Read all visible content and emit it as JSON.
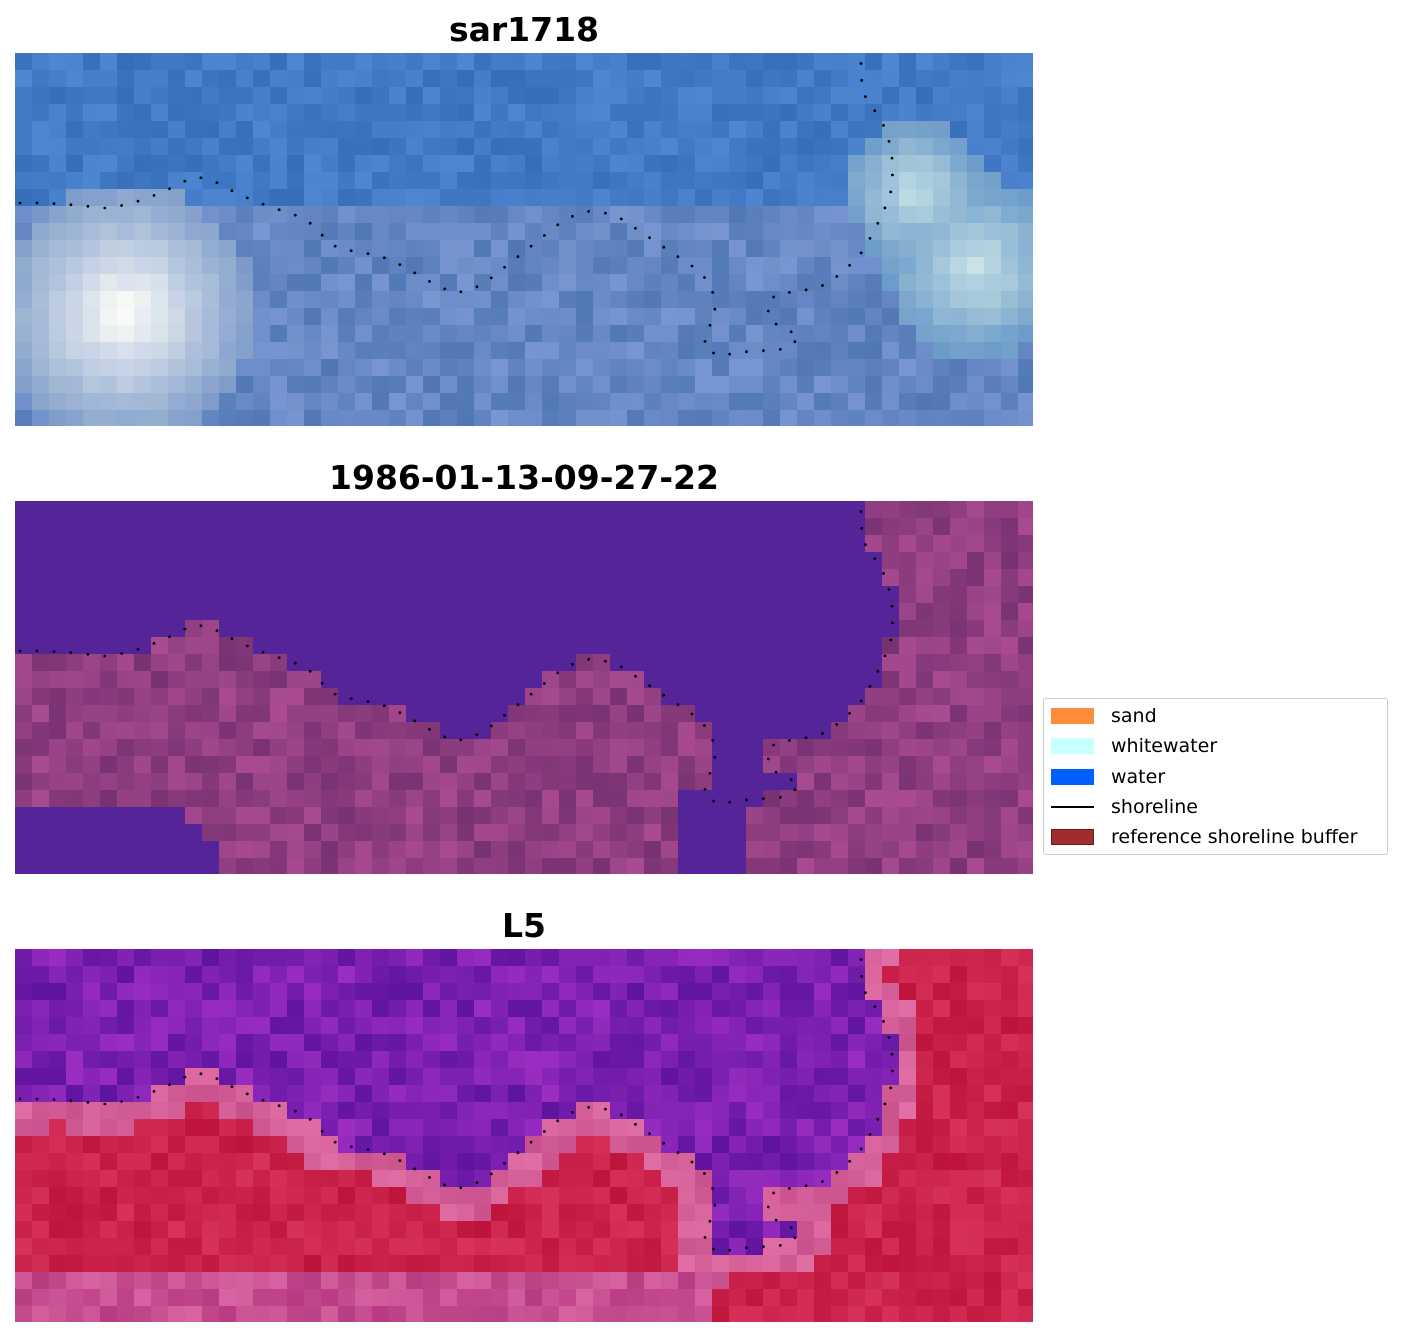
{
  "panels": [
    {
      "title": "sar1718",
      "style": "rgb"
    },
    {
      "title": "1986-01-13-09-27-22",
      "style": "classified"
    },
    {
      "title": "L5",
      "style": "index"
    }
  ],
  "legend": {
    "items": [
      {
        "label": "sand",
        "kind": "patch",
        "color": "#ff8c3a"
      },
      {
        "label": "whitewater",
        "kind": "patch",
        "color": "#c8ffff"
      },
      {
        "label": "water",
        "kind": "patch",
        "color": "#0060ff"
      },
      {
        "label": "shoreline",
        "kind": "line",
        "color": "#000000"
      },
      {
        "label": "reference shoreline buffer",
        "kind": "patch",
        "color": "#a02c2c"
      }
    ]
  },
  "colors": {
    "water_class": "#552499",
    "land_class": "#7e3878",
    "index_high": "#c0103c",
    "index_low": "#5a06a4"
  }
}
